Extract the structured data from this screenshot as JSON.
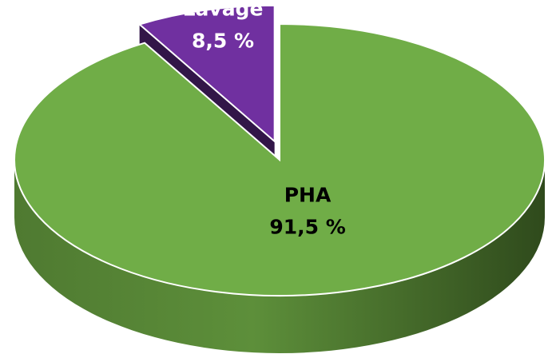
{
  "chart_data": {
    "type": "pie",
    "categories": [
      "PHA",
      "Lavage"
    ],
    "values": [
      91.5,
      8.5
    ],
    "value_labels": [
      "91,5 %",
      "8,5 %"
    ],
    "colors": [
      "#70ad47",
      "#7030a0"
    ],
    "explode": [
      false,
      true
    ]
  }
}
